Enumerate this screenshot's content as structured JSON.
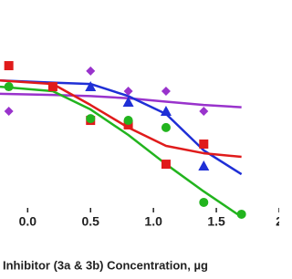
{
  "chart_data": {
    "type": "scatter",
    "x_label": "Inhibitor (3a & 3b) Concentration, µg",
    "xlim": [
      -0.22,
      2.0
    ],
    "ylim": [
      0,
      100
    ],
    "xticks": [
      {
        "value": 0,
        "label": "0.0"
      },
      0.5,
      {
        "value": 1,
        "label": "1.0"
      },
      1.5,
      2
    ],
    "x": [
      -0.15,
      0.2,
      0.5,
      0.8,
      1.1,
      1.4,
      1.7
    ],
    "fit_x": [
      -0.22,
      0.2,
      0.5,
      0.8,
      1.1,
      1.4,
      1.7
    ],
    "series": [
      {
        "color": "#9933cc",
        "marker": "diamond",
        "values": [
          50.2,
          null,
          68.2,
          59.2,
          59.2,
          50.2,
          null
        ],
        "fit": [
          58,
          57.5,
          57,
          56,
          54.5,
          53,
          52
        ]
      },
      {
        "color": "#1f2fd6",
        "marker": "triangle",
        "values": [
          null,
          null,
          61.2,
          54.3,
          50.2,
          25.7,
          null
        ],
        "fit": [
          64,
          63,
          62.4,
          57,
          49,
          32.7,
          22
        ]
      },
      {
        "color": "#e01b1b",
        "marker": "square",
        "values": [
          70.6,
          61.2,
          46.1,
          44.1,
          26.5,
          35.5,
          null
        ],
        "fit": [
          64,
          62.4,
          53,
          42.9,
          34.7,
          31.4,
          29.8
        ]
      },
      {
        "color": "#22b41e",
        "marker": "circle",
        "values": [
          61.2,
          null,
          46.9,
          46.1,
          42.9,
          9.4,
          4.1
        ],
        "fit": [
          61.2,
          59.2,
          51,
          39.6,
          26.5,
          14.3,
          2.9
        ]
      }
    ]
  }
}
